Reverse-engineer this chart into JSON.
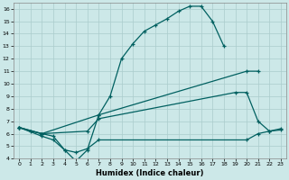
{
  "xlabel": "Humidex (Indice chaleur)",
  "bg_color": "#cce8e8",
  "grid_color": "#aacccc",
  "line_color": "#006060",
  "xlim": [
    -0.5,
    23.5
  ],
  "ylim": [
    4,
    16.5
  ],
  "xticks": [
    0,
    1,
    2,
    3,
    4,
    5,
    6,
    7,
    8,
    9,
    10,
    11,
    12,
    13,
    14,
    15,
    16,
    17,
    18,
    19,
    20,
    21,
    22,
    23
  ],
  "yticks": [
    4,
    5,
    6,
    7,
    8,
    9,
    10,
    11,
    12,
    13,
    14,
    15,
    16
  ],
  "line1_x": [
    0,
    1,
    2,
    3,
    4,
    5,
    6,
    7,
    8,
    9,
    10,
    11,
    12,
    13,
    14,
    15,
    16,
    17,
    18
  ],
  "line1_y": [
    6.5,
    6.2,
    6.0,
    5.8,
    4.7,
    3.8,
    4.7,
    7.5,
    9.0,
    12.0,
    13.2,
    14.2,
    14.7,
    15.2,
    15.8,
    16.2,
    16.2,
    15.0,
    13.0
  ],
  "line2_x": [
    0,
    2,
    7,
    20,
    21
  ],
  "line2_y": [
    6.5,
    6.0,
    7.5,
    11.0,
    11.0
  ],
  "line3_x": [
    0,
    2,
    6,
    7,
    19,
    20,
    21,
    22,
    23
  ],
  "line3_y": [
    6.5,
    6.0,
    6.2,
    7.2,
    9.3,
    9.3,
    7.0,
    6.2,
    6.4
  ],
  "line4_x": [
    0,
    2,
    3,
    4,
    5,
    6,
    7,
    20,
    21,
    22,
    23
  ],
  "line4_y": [
    6.5,
    5.8,
    5.5,
    4.7,
    4.5,
    4.8,
    5.5,
    5.5,
    6.0,
    6.2,
    6.3
  ]
}
